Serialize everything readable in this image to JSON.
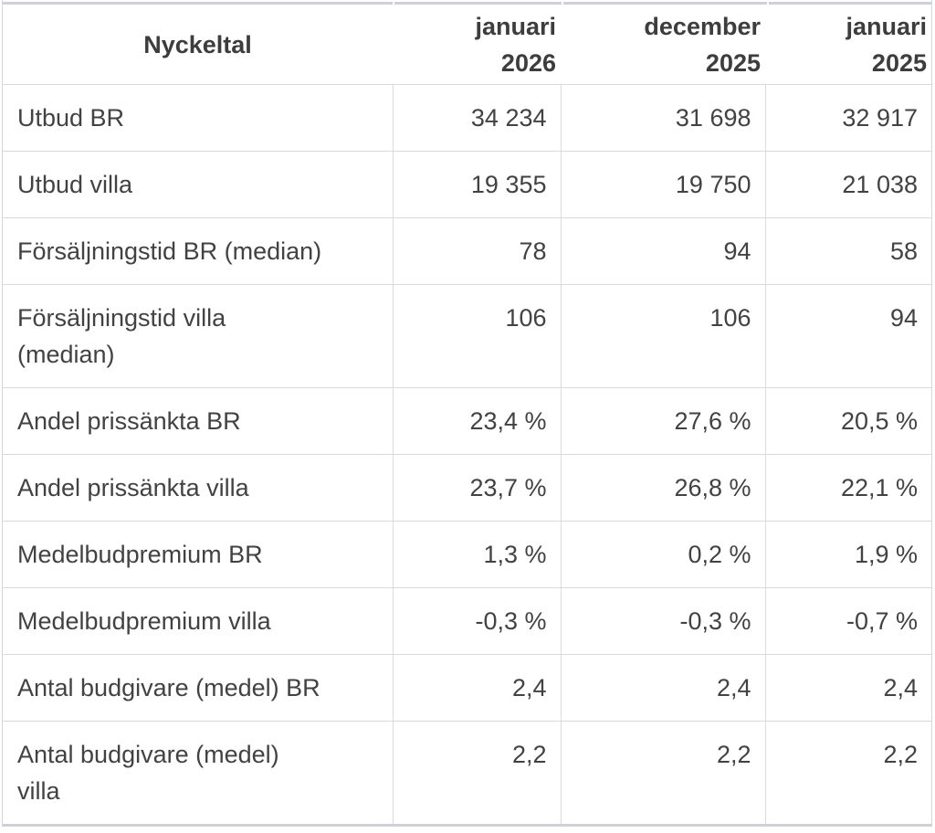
{
  "accent_colors": {
    "border_light": "#d9d9e0",
    "border_heavy": "#d0d0d9",
    "text": "#424242",
    "header_text": "#3d3d3d",
    "background": "#ffffff"
  },
  "chart_data": {
    "type": "table",
    "title": "Nyckeltal",
    "columns": [
      "Nyckeltal",
      "januari\n2026",
      "december\n2025",
      "januari\n2025"
    ],
    "rows": [
      {
        "label": "Utbud BR",
        "values": [
          "34 234",
          "31 698",
          "32 917"
        ]
      },
      {
        "label": "Utbud villa",
        "values": [
          "19 355",
          "19 750",
          "21 038"
        ]
      },
      {
        "label": "Försäljningstid BR (median)",
        "values": [
          "78",
          "94",
          "58"
        ]
      },
      {
        "label": "Försäljningstid villa\n(median)",
        "values": [
          "106",
          "106",
          "94"
        ]
      },
      {
        "label": "Andel prissänkta BR",
        "values": [
          "23,4 %",
          "27,6 %",
          "20,5 %"
        ]
      },
      {
        "label": "Andel prissänkta villa",
        "values": [
          "23,7 %",
          "26,8 %",
          "22,1 %"
        ]
      },
      {
        "label": "Medelbudpremium BR",
        "values": [
          "1,3 %",
          "0,2 %",
          "1,9 %"
        ]
      },
      {
        "label": "Medelbudpremium villa",
        "values": [
          "-0,3 %",
          "-0,3 %",
          "-0,7 %"
        ]
      },
      {
        "label": "Antal budgivare (medel) BR",
        "values": [
          "2,4",
          "2,4",
          "2,4"
        ]
      },
      {
        "label": "Antal budgivare (medel)\nvilla",
        "values": [
          "2,2",
          "2,2",
          "2,2"
        ]
      }
    ]
  }
}
